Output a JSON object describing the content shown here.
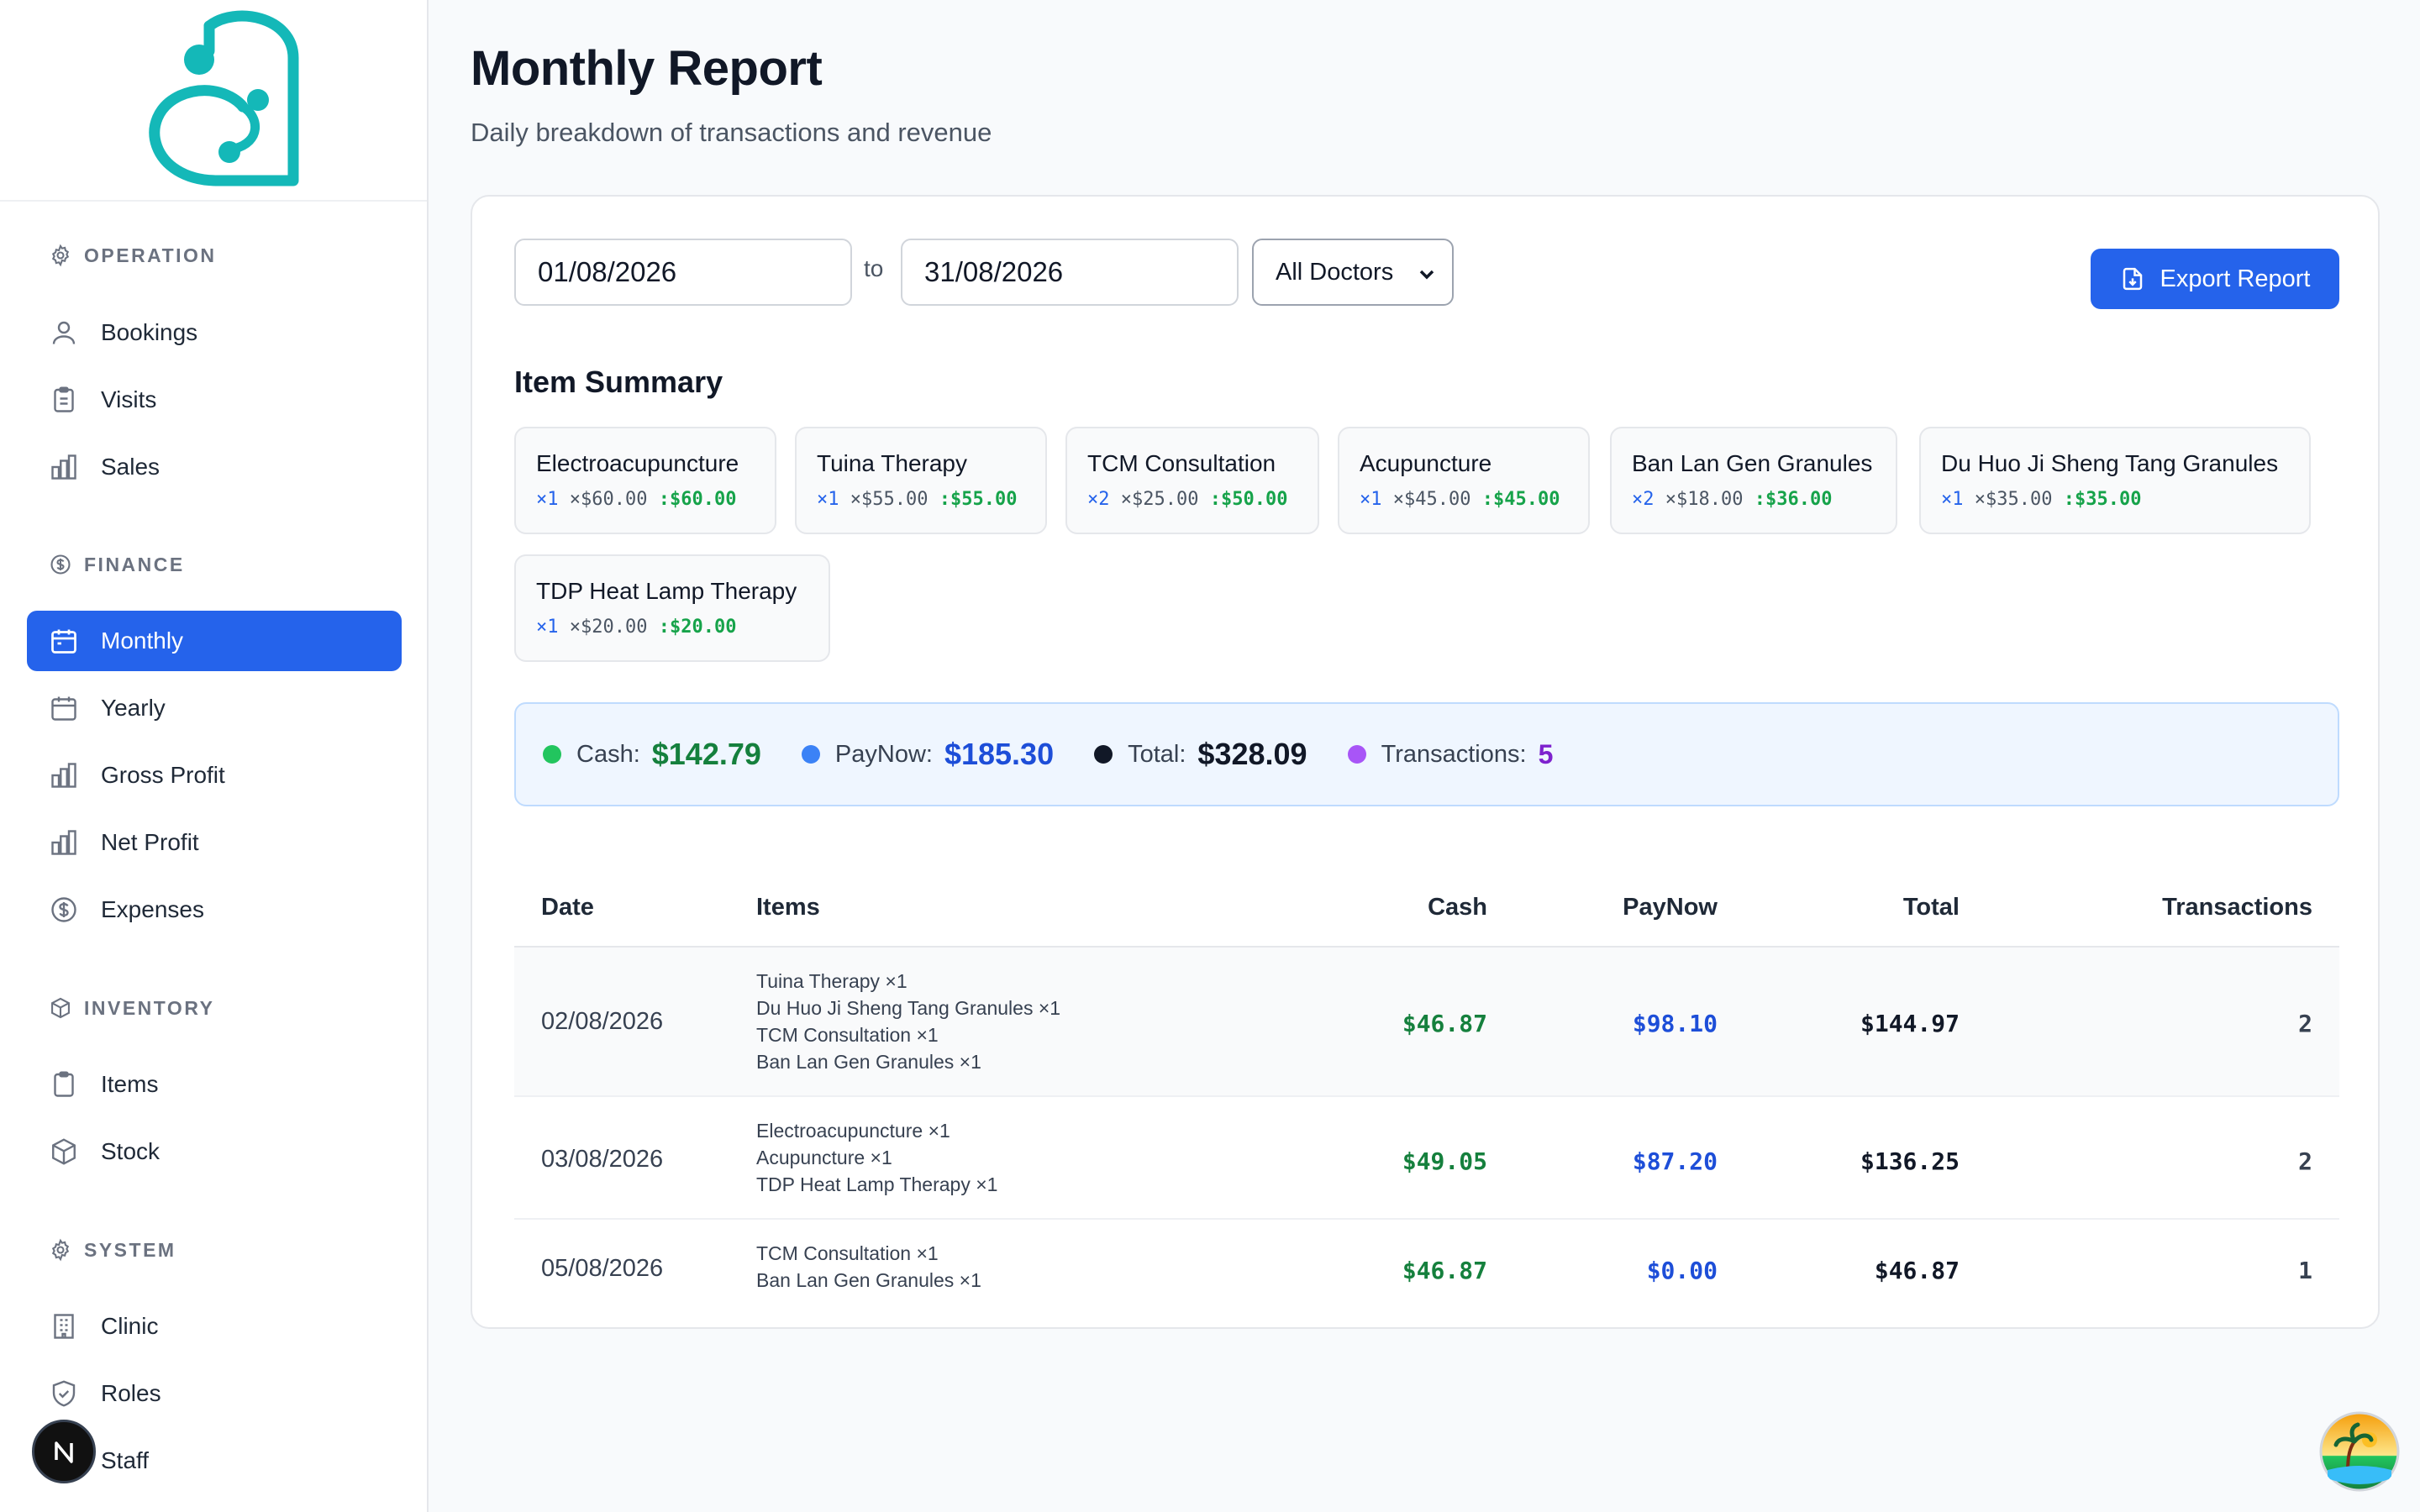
{
  "sidebar": {
    "logo_icon": "heart-stethoscope-logo",
    "sections": {
      "operation": "OPERATION",
      "finance": "FINANCE",
      "inventory": "INVENTORY",
      "system": "SYSTEM"
    },
    "items": {
      "bookings": "Bookings",
      "visits": "Visits",
      "sales": "Sales",
      "monthly": "Monthly",
      "yearly": "Yearly",
      "gross_profit": "Gross Profit",
      "net_profit": "Net Profit",
      "expenses": "Expenses",
      "items": "Items",
      "stock": "Stock",
      "clinic": "Clinic",
      "roles": "Roles",
      "staff": "Staff"
    },
    "active": "Monthly",
    "accent_color": "#2563eb"
  },
  "header": {
    "title": "Monthly Report",
    "subtitle": "Daily breakdown of transactions and revenue"
  },
  "filters": {
    "start_date": "01/08/2026",
    "to_label": "to",
    "end_date": "31/08/2026",
    "doctor_select": "All Doctors",
    "export_label": "Export Report"
  },
  "item_summary": {
    "heading": "Item Summary",
    "items": [
      {
        "name": "Electroacupuncture",
        "qty": "×1",
        "price": "×$60.00",
        "amount": ":$60.00"
      },
      {
        "name": "Tuina Therapy",
        "qty": "×1",
        "price": "×$55.00",
        "amount": ":$55.00"
      },
      {
        "name": "TCM Consultation",
        "qty": "×2",
        "price": "×$25.00",
        "amount": ":$50.00"
      },
      {
        "name": "Acupuncture",
        "qty": "×1",
        "price": "×$45.00",
        "amount": ":$45.00"
      },
      {
        "name": "Ban Lan Gen Granules",
        "qty": "×2",
        "price": "×$18.00",
        "amount": ":$36.00"
      },
      {
        "name": "Du Huo Ji Sheng Tang Granules",
        "qty": "×1",
        "price": "×$35.00",
        "amount": ":$35.00"
      },
      {
        "name": "TDP Heat Lamp Therapy",
        "qty": "×1",
        "price": "×$20.00",
        "amount": ":$20.00"
      }
    ]
  },
  "totals": {
    "cash_label": "Cash:",
    "cash": "$142.79",
    "paynow_label": "PayNow:",
    "paynow": "$185.30",
    "total_label": "Total:",
    "total": "$328.09",
    "tx_label": "Transactions:",
    "tx": "5",
    "colors": {
      "cash": "#22c55e",
      "paynow": "#3b82f6",
      "total": "#111827",
      "tx": "#a855f7"
    }
  },
  "table": {
    "columns": [
      "Date",
      "Items",
      "Cash",
      "PayNow",
      "Total",
      "Transactions"
    ],
    "rows": [
      {
        "date": "02/08/2026",
        "items": [
          "Tuina Therapy ×1",
          "Du Huo Ji Sheng Tang Granules ×1",
          "TCM Consultation ×1",
          "Ban Lan Gen Granules ×1"
        ],
        "cash": "$46.87",
        "paynow": "$98.10",
        "total": "$144.97",
        "tx": "2"
      },
      {
        "date": "03/08/2026",
        "items": [
          "Electroacupuncture ×1",
          "Acupuncture ×1",
          "TDP Heat Lamp Therapy ×1"
        ],
        "cash": "$49.05",
        "paynow": "$87.20",
        "total": "$136.25",
        "tx": "2"
      },
      {
        "date": "05/08/2026",
        "items": [
          "TCM Consultation ×1",
          "Ban Lan Gen Granules ×1"
        ],
        "cash": "$46.87",
        "paynow": "$0.00",
        "total": "$46.87",
        "tx": "1"
      }
    ]
  },
  "badges": {
    "framework": "N",
    "avatar_icon": "beach-avatar-icon"
  }
}
